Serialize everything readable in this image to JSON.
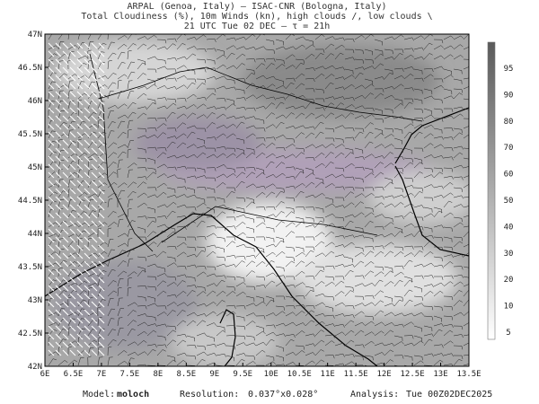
{
  "header": {
    "line1": "ARPAL (Genoa, Italy)  –  ISAC-CNR (Bologna, Italy)",
    "line2": "Total Cloudiness (%), 10m Winds (kn), high clouds /, low clouds \\",
    "line3": "21 UTC Tue 02 DEC  –  τ = 21h"
  },
  "map": {
    "lat_labels": [
      "47N",
      "46.5N",
      "46N",
      "45.5N",
      "45N",
      "44.5N",
      "44N",
      "43.5N",
      "43N",
      "42.5N",
      "42N"
    ],
    "lon_labels": [
      "6E",
      "6.5E",
      "7E",
      "7.5E",
      "8E",
      "8.5E",
      "9E",
      "9.5E",
      "10E",
      "10.5E",
      "11E",
      "11.5E",
      "12E",
      "12.5E",
      "13E",
      "13.5E"
    ]
  },
  "colorbar": {
    "labels": [
      "95",
      "90",
      "80",
      "70",
      "60",
      "50",
      "40",
      "30",
      "20",
      "10",
      "5"
    ]
  },
  "footer": {
    "model_label": "Model:",
    "model": "moloch",
    "resolution_label": "Resolution:",
    "resolution": "0.037°x0.028°",
    "analysis_label": "Analysis:",
    "analysis": "Tue 00Z02DEC2025"
  }
}
